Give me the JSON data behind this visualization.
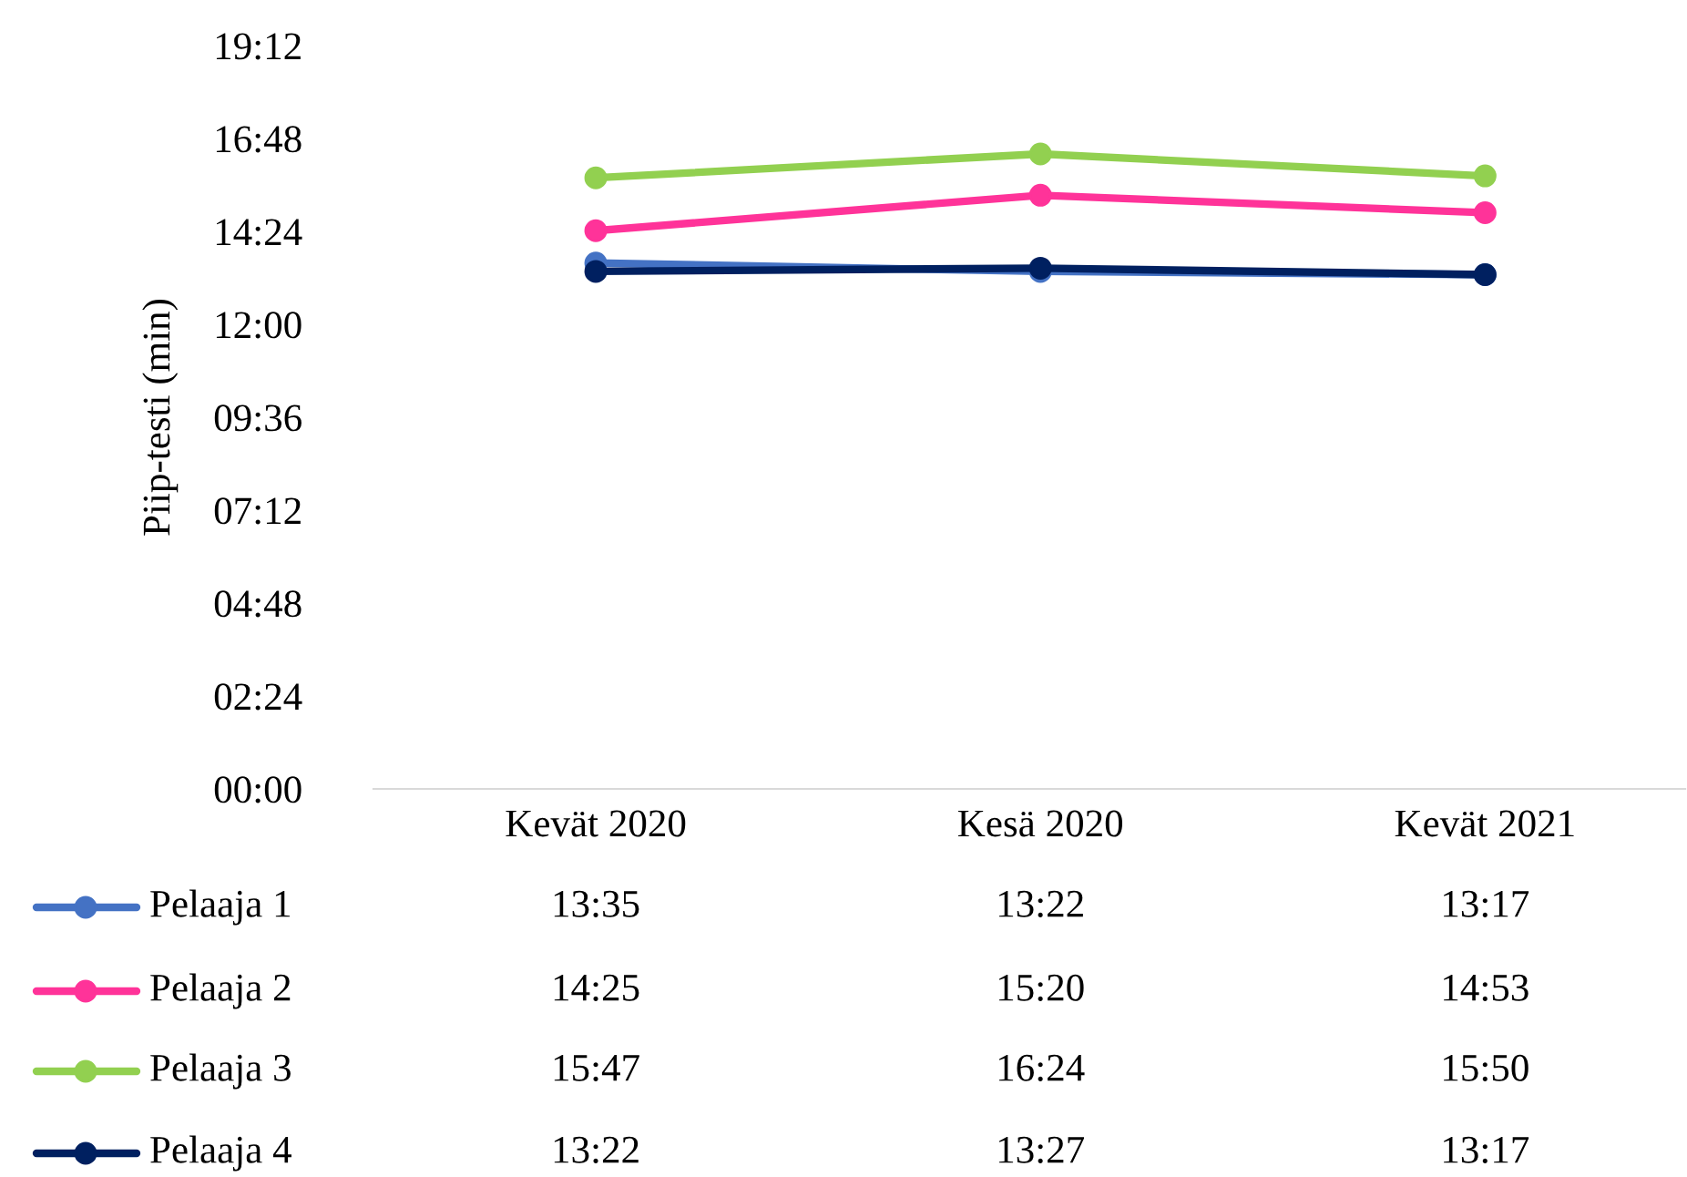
{
  "chart_data": {
    "type": "line",
    "ylabel": "Piip-testi (min)",
    "categories": [
      "Kevät 2020",
      "Kesä 2020",
      "Kevät 2021"
    ],
    "series": [
      {
        "name": "Pelaaja 1",
        "color": "#4472c4",
        "values": [
          13.583,
          13.367,
          13.283
        ],
        "value_labels": [
          "13:35",
          "13:22",
          "13:17"
        ]
      },
      {
        "name": "Pelaaja 2",
        "color": "#ff3399",
        "values": [
          14.417,
          15.333,
          14.883
        ],
        "value_labels": [
          "14:25",
          "15:20",
          "14:53"
        ]
      },
      {
        "name": "Pelaaja 3",
        "color": "#92d050",
        "values": [
          15.783,
          16.4,
          15.833
        ],
        "value_labels": [
          "15:47",
          "16:24",
          "15:50"
        ]
      },
      {
        "name": "Pelaaja 4",
        "color": "#002060",
        "values": [
          13.367,
          13.45,
          13.283
        ],
        "value_labels": [
          "13:22",
          "13:27",
          "13:17"
        ]
      }
    ],
    "ylim": [
      0,
      19.2
    ],
    "yticks": [
      {
        "value": 0,
        "label": "00:00"
      },
      {
        "value": 2.4,
        "label": "02:24"
      },
      {
        "value": 4.8,
        "label": "04:48"
      },
      {
        "value": 7.2,
        "label": "07:12"
      },
      {
        "value": 9.6,
        "label": "09:36"
      },
      {
        "value": 12,
        "label": "12:00"
      },
      {
        "value": 14.4,
        "label": "14:24"
      },
      {
        "value": 16.8,
        "label": "16:48"
      },
      {
        "value": 19.2,
        "label": "19:12"
      }
    ],
    "marker": "circle",
    "line_style": "solid",
    "grid": false,
    "legend": "bottom"
  }
}
